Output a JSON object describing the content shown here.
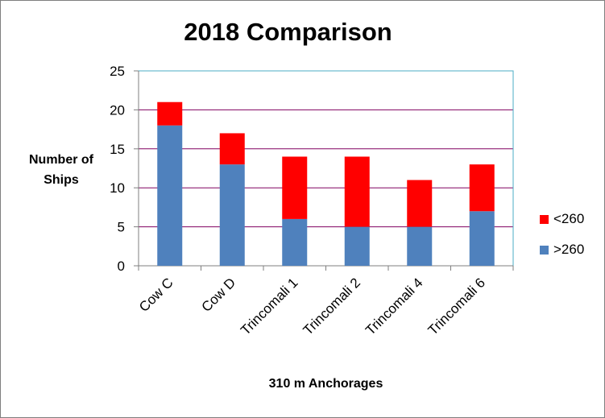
{
  "chart_data": {
    "type": "bar",
    "stacked": true,
    "title": "2018 Comparison",
    "ylabel": "Number of Ships",
    "xlabel": "310 m Anchorages",
    "categories": [
      "Cow C",
      "Cow D",
      "Trincomali 1",
      "Trincomali 2",
      "Trincomali 4",
      "Trincomali 6"
    ],
    "series": [
      {
        "name": ">260",
        "color": "#4f81bd",
        "values": [
          18,
          13,
          6,
          5,
          5,
          7
        ]
      },
      {
        "name": "<260",
        "color": "#ff0000",
        "values": [
          3,
          4,
          8,
          9,
          6,
          6
        ]
      }
    ],
    "ylim": [
      0,
      25
    ],
    "yticks": [
      0,
      5,
      10,
      15,
      20,
      25
    ],
    "grid": true,
    "legend": "right"
  }
}
